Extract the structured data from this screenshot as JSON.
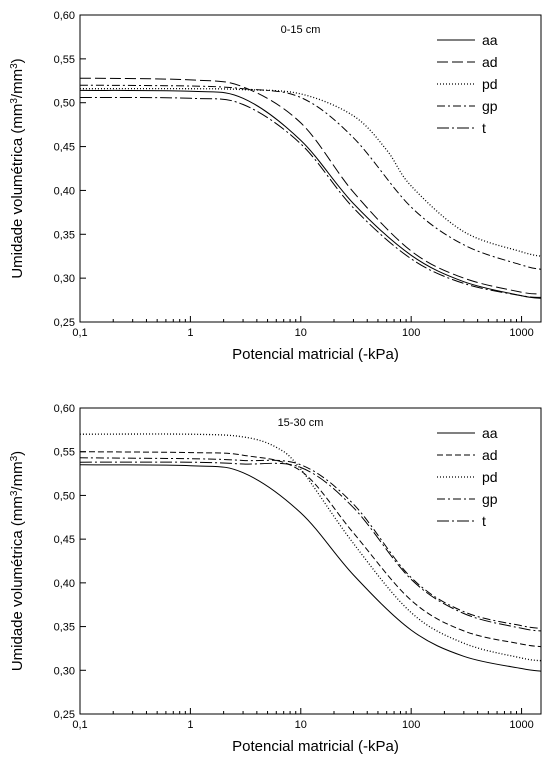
{
  "chart_data": [
    {
      "type": "line",
      "title": "0-15 cm",
      "xlabel": "Potencial matricial (-kPa)",
      "ylabel_main": "Umidade volumétrica (mm",
      "ylabel_mid": "/mm",
      "ylabel_sup": "3",
      "ylabel_close": ")",
      "xscale": "log",
      "xlim": [
        0.1,
        1500
      ],
      "ylim": [
        0.25,
        0.6
      ],
      "x_ticks": [
        {
          "value": 0.1,
          "label": "0,1"
        },
        {
          "value": 1,
          "label": "1"
        },
        {
          "value": 10,
          "label": "10"
        },
        {
          "value": 100,
          "label": "100"
        },
        {
          "value": 1000,
          "label": "1000"
        }
      ],
      "y_ticks": [
        {
          "value": 0.25,
          "label": "0,25"
        },
        {
          "value": 0.3,
          "label": "0,30"
        },
        {
          "value": 0.35,
          "label": "0,35"
        },
        {
          "value": 0.4,
          "label": "0,40"
        },
        {
          "value": 0.45,
          "label": "0,45"
        },
        {
          "value": 0.5,
          "label": "0,50"
        },
        {
          "value": 0.55,
          "label": "0,55"
        },
        {
          "value": 0.6,
          "label": "0,60"
        }
      ],
      "legend_position": "top-right",
      "series": [
        {
          "name": "aa",
          "dash": "solid",
          "x": [
            0.1,
            1,
            3,
            10,
            30,
            100,
            300,
            1000,
            1500
          ],
          "y": [
            0.514,
            0.513,
            0.505,
            0.457,
            0.385,
            0.326,
            0.296,
            0.28,
            0.277
          ]
        },
        {
          "name": "ad",
          "dash": "long",
          "x": [
            0.1,
            1,
            3,
            10,
            30,
            100,
            300,
            1000,
            1500
          ],
          "y": [
            0.528,
            0.526,
            0.518,
            0.477,
            0.398,
            0.331,
            0.3,
            0.284,
            0.282
          ]
        },
        {
          "name": "pd",
          "dash": "dot",
          "x": [
            0.1,
            1,
            3,
            10,
            30,
            60,
            100,
            300,
            1000,
            1500
          ],
          "y": [
            0.516,
            0.516,
            0.515,
            0.51,
            0.485,
            0.446,
            0.405,
            0.353,
            0.33,
            0.325
          ]
        },
        {
          "name": "gp",
          "dash": "dashdot",
          "x": [
            0.1,
            1,
            3,
            10,
            30,
            100,
            300,
            1000,
            1500
          ],
          "y": [
            0.52,
            0.519,
            0.516,
            0.506,
            0.46,
            0.381,
            0.338,
            0.315,
            0.31
          ]
        },
        {
          "name": "t",
          "dash": "dashdot2",
          "x": [
            0.1,
            1,
            3,
            10,
            30,
            100,
            300,
            1000,
            1500
          ],
          "y": [
            0.506,
            0.505,
            0.498,
            0.453,
            0.38,
            0.322,
            0.294,
            0.28,
            0.278
          ]
        }
      ]
    },
    {
      "type": "line",
      "title": "15-30 cm",
      "xlabel": "Potencial matricial (-kPa)",
      "ylabel_main": "Umidade volumétrica (mm",
      "ylabel_mid": "/mm",
      "ylabel_sup": "3",
      "ylabel_close": ")",
      "xscale": "log",
      "xlim": [
        0.1,
        1500
      ],
      "ylim": [
        0.25,
        0.6
      ],
      "x_ticks": [
        {
          "value": 0.1,
          "label": "0,1"
        },
        {
          "value": 1,
          "label": "1"
        },
        {
          "value": 10,
          "label": "10"
        },
        {
          "value": 100,
          "label": "100"
        },
        {
          "value": 1000,
          "label": "1000"
        }
      ],
      "y_ticks": [
        {
          "value": 0.25,
          "label": "0,25"
        },
        {
          "value": 0.3,
          "label": "0,30"
        },
        {
          "value": 0.35,
          "label": "0,35"
        },
        {
          "value": 0.4,
          "label": "0,40"
        },
        {
          "value": 0.45,
          "label": "0,45"
        },
        {
          "value": 0.5,
          "label": "0,50"
        },
        {
          "value": 0.55,
          "label": "0,55"
        },
        {
          "value": 0.6,
          "label": "0,60"
        }
      ],
      "legend_position": "top-right",
      "series": [
        {
          "name": "aa",
          "dash": "solid",
          "x": [
            0.1,
            1,
            3,
            10,
            30,
            100,
            300,
            1000,
            1500
          ],
          "y": [
            0.535,
            0.534,
            0.526,
            0.48,
            0.409,
            0.346,
            0.316,
            0.302,
            0.299
          ]
        },
        {
          "name": "ad",
          "dash": "dash",
          "x": [
            0.1,
            1,
            3,
            10,
            30,
            100,
            300,
            1000,
            1500
          ],
          "y": [
            0.55,
            0.549,
            0.546,
            0.528,
            0.457,
            0.38,
            0.345,
            0.33,
            0.327
          ]
        },
        {
          "name": "pd",
          "dash": "dot",
          "x": [
            0.1,
            1,
            3,
            6,
            10,
            30,
            100,
            300,
            1000,
            1500
          ],
          "y": [
            0.57,
            0.57,
            0.567,
            0.555,
            0.53,
            0.445,
            0.366,
            0.331,
            0.314,
            0.311
          ]
        },
        {
          "name": "gp",
          "dash": "dashdot",
          "x": [
            0.1,
            1,
            3,
            10,
            30,
            100,
            300,
            1000,
            1500
          ],
          "y": [
            0.543,
            0.542,
            0.54,
            0.535,
            0.49,
            0.406,
            0.367,
            0.351,
            0.348
          ]
        },
        {
          "name": "t",
          "dash": "dashdot2",
          "x": [
            0.1,
            1,
            3,
            10,
            30,
            100,
            300,
            1000,
            1500
          ],
          "y": [
            0.538,
            0.538,
            0.536,
            0.532,
            0.486,
            0.404,
            0.365,
            0.348,
            0.345
          ]
        }
      ]
    }
  ]
}
